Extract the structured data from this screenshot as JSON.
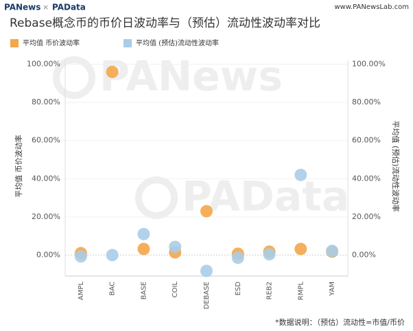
{
  "header": {
    "brand": "PANews",
    "separator": "×",
    "brand2": "PAData",
    "url": "www.PANewsLab.com"
  },
  "watermarks": [
    "PANews",
    "PAData"
  ],
  "chart_data": {
    "type": "scatter",
    "title": "Rebase概念币的币价日波动率与（预估）流动性波动率对比",
    "categories": [
      "AMPL",
      "BAC",
      "BASE",
      "COIL",
      "DEBASE",
      "ESD",
      "REB2",
      "RMPL",
      "YAM"
    ],
    "series": [
      {
        "name": "平均值 币价波动率",
        "color": "#f4a64a",
        "values": [
          1,
          96,
          3.2,
          1.4,
          23,
          0.7,
          1.8,
          3.2,
          1.8
        ]
      },
      {
        "name": "平均值 (预估)流动性波动率",
        "color": "#a8cde8",
        "axis": "y2",
        "values": [
          -0.7,
          0,
          11,
          4.3,
          -8.3,
          -1.4,
          0.4,
          42,
          2.2
        ]
      }
    ],
    "ylabel": "平均值 币价波动率",
    "y2label": "平均值 (预估)流动性波动率",
    "ylim": [
      -11,
      102
    ],
    "yticks": [
      {
        "value": 0,
        "label": "0.00%"
      },
      {
        "value": 20,
        "label": "20.00%"
      },
      {
        "value": 40,
        "label": "40.00%"
      },
      {
        "value": 60,
        "label": "60.00%"
      },
      {
        "value": 80,
        "label": "80.00%"
      },
      {
        "value": 100,
        "label": "100.00%"
      }
    ],
    "y2lim": [
      -11,
      102
    ],
    "y2ticks": [
      {
        "value": 0,
        "label": "0.00%"
      },
      {
        "value": 20,
        "label": "20.00%"
      },
      {
        "value": 40,
        "label": "40.00%"
      },
      {
        "value": 60,
        "label": "60.00%"
      },
      {
        "value": 80,
        "label": "80.00%"
      },
      {
        "value": 100,
        "label": "100.00%"
      }
    ],
    "grid": true,
    "note": "*数据说明：（预估）流动性=市值/币价"
  }
}
